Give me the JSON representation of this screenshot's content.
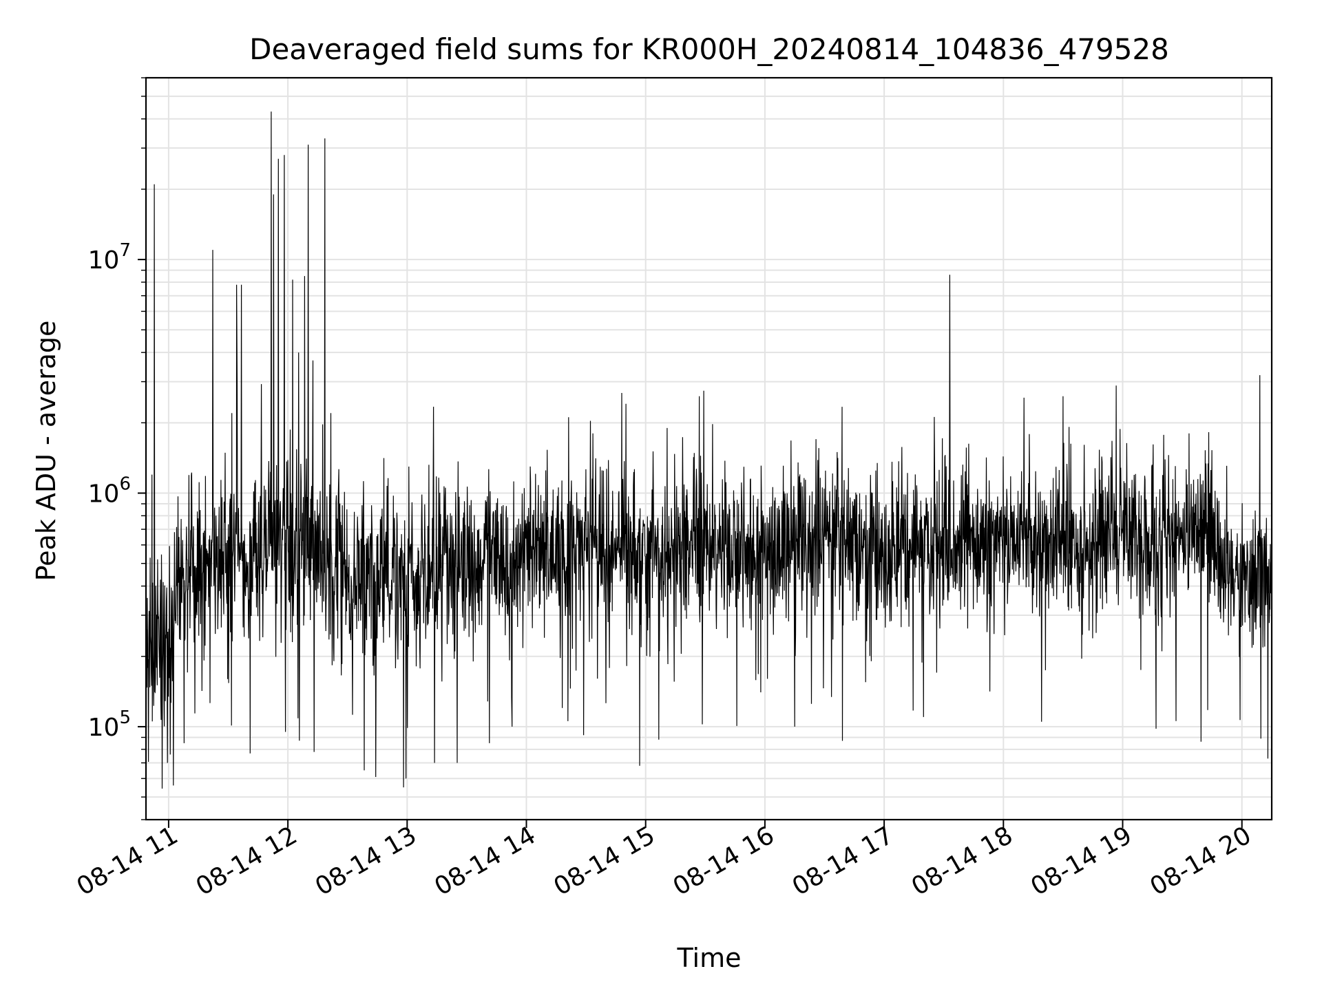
{
  "chart_data": {
    "type": "line",
    "title": "Deaveraged field sums for KR000H_20240814_104836_479528",
    "xlabel": "Time",
    "ylabel": "Peak ADU - average",
    "yscale": "log",
    "ylim": [
      40000,
      60000000
    ],
    "xlim_hours": [
      10.81,
      20.25
    ],
    "grid": true,
    "line_color": "#000000",
    "x_ticks": [
      {
        "hour": 11,
        "label": "08-14 11"
      },
      {
        "hour": 12,
        "label": "08-14 12"
      },
      {
        "hour": 13,
        "label": "08-14 13"
      },
      {
        "hour": 14,
        "label": "08-14 14"
      },
      {
        "hour": 15,
        "label": "08-14 15"
      },
      {
        "hour": 16,
        "label": "08-14 16"
      },
      {
        "hour": 17,
        "label": "08-14 17"
      },
      {
        "hour": 18,
        "label": "08-14 18"
      },
      {
        "hour": 19,
        "label": "08-14 19"
      },
      {
        "hour": 20,
        "label": "08-14 20"
      }
    ],
    "y_ticks": [
      {
        "exp": 5,
        "base": "10",
        "sup": "5"
      },
      {
        "exp": 6,
        "base": "10",
        "sup": "6"
      },
      {
        "exp": 7,
        "base": "10",
        "sup": "7"
      }
    ],
    "baseline_segments": [
      {
        "t0": 10.81,
        "t1": 11.05,
        "median": 230000,
        "spread": 0.55
      },
      {
        "t0": 11.05,
        "t1": 11.35,
        "median": 450000,
        "spread": 0.5
      },
      {
        "t0": 11.35,
        "t1": 11.8,
        "median": 550000,
        "spread": 0.45
      },
      {
        "t0": 11.8,
        "t1": 12.3,
        "median": 600000,
        "spread": 0.5
      },
      {
        "t0": 12.3,
        "t1": 13.2,
        "median": 450000,
        "spread": 0.5
      },
      {
        "t0": 13.2,
        "t1": 14.5,
        "median": 520000,
        "spread": 0.45
      },
      {
        "t0": 14.5,
        "t1": 16.0,
        "median": 600000,
        "spread": 0.45
      },
      {
        "t0": 16.0,
        "t1": 17.5,
        "median": 620000,
        "spread": 0.45
      },
      {
        "t0": 17.5,
        "t1": 19.8,
        "median": 630000,
        "spread": 0.45
      },
      {
        "t0": 19.8,
        "t1": 20.25,
        "median": 450000,
        "spread": 0.4
      }
    ],
    "spikes": [
      {
        "hour": 10.88,
        "value": 21000000
      },
      {
        "hour": 10.86,
        "value": 1200000
      },
      {
        "hour": 11.37,
        "value": 11000000
      },
      {
        "hour": 11.57,
        "value": 7800000
      },
      {
        "hour": 11.61,
        "value": 7800000
      },
      {
        "hour": 11.53,
        "value": 2200000
      },
      {
        "hour": 11.86,
        "value": 43000000
      },
      {
        "hour": 11.88,
        "value": 19000000
      },
      {
        "hour": 11.92,
        "value": 27000000
      },
      {
        "hour": 11.97,
        "value": 28000000
      },
      {
        "hour": 12.04,
        "value": 8200000
      },
      {
        "hour": 12.09,
        "value": 4000000
      },
      {
        "hour": 12.14,
        "value": 8500000
      },
      {
        "hour": 12.17,
        "value": 31000000
      },
      {
        "hour": 12.21,
        "value": 3700000
      },
      {
        "hour": 12.31,
        "value": 33000000
      },
      {
        "hour": 12.36,
        "value": 2200000
      },
      {
        "hour": 15.45,
        "value": 2600000
      },
      {
        "hour": 17.55,
        "value": 8600000
      },
      {
        "hour": 18.5,
        "value": 2600000
      },
      {
        "hour": 20.15,
        "value": 3200000
      }
    ],
    "dips": [
      {
        "hour": 10.99,
        "value": 70000
      },
      {
        "hour": 11.04,
        "value": 56000
      },
      {
        "hour": 11.13,
        "value": 85000
      },
      {
        "hour": 11.98,
        "value": 95000
      },
      {
        "hour": 12.22,
        "value": 78000
      },
      {
        "hour": 12.64,
        "value": 65000
      },
      {
        "hour": 12.97,
        "value": 55000
      },
      {
        "hour": 12.99,
        "value": 60000
      },
      {
        "hour": 13.23,
        "value": 70000
      },
      {
        "hour": 13.42,
        "value": 70000
      },
      {
        "hour": 13.69,
        "value": 85000
      },
      {
        "hour": 13.88,
        "value": 100000
      },
      {
        "hour": 14.48,
        "value": 92000
      },
      {
        "hour": 14.95,
        "value": 68000
      },
      {
        "hour": 15.11,
        "value": 88000
      },
      {
        "hour": 16.25,
        "value": 100000
      },
      {
        "hour": 16.65,
        "value": 87000
      },
      {
        "hour": 17.33,
        "value": 110000
      },
      {
        "hour": 18.32,
        "value": 105000
      },
      {
        "hour": 19.28,
        "value": 98000
      }
    ]
  }
}
